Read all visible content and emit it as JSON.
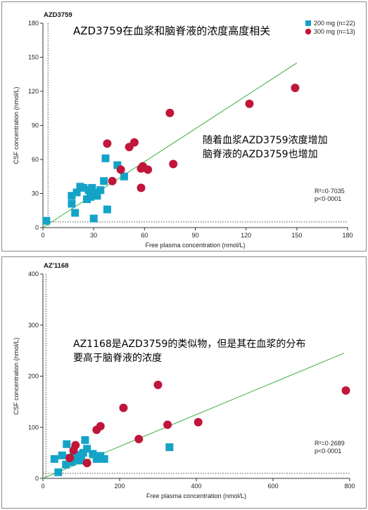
{
  "annotations": {
    "top_title": "AZD3759在血浆和脑脊液的浓度高度相关",
    "top_note_line1": "随着血浆AZD3759浓度增加",
    "top_note_line2": "脑脊液的AZD3759也增加",
    "bottom_note_line1": "AZ1168是AZD3759的类似物，但是其在血浆的分布",
    "bottom_note_line2": "要高于脑脊液的浓度"
  },
  "colors": {
    "series_200": "#14a3c7",
    "series_300": "#c0163a",
    "fit_line": "#3cb043",
    "axis": "#333333"
  },
  "chart_data": [
    {
      "type": "scatter",
      "title": "AZD3759",
      "xlabel": "Free plasma concentration (nmol/L)",
      "ylabel": "CSF concentration (nmol/L)",
      "xlim": [
        0,
        180
      ],
      "ylim": [
        0,
        180
      ],
      "xticks": [
        0,
        30,
        60,
        90,
        120,
        150,
        180
      ],
      "yticks": [
        0,
        30,
        60,
        90,
        120,
        150,
        180
      ],
      "dotted_x": 3,
      "dotted_y": 5,
      "legend_position": "top-right",
      "series": [
        {
          "name": "200 mg (n=22)",
          "marker": "square",
          "points": [
            [
              2,
              6
            ],
            [
              17,
              21
            ],
            [
              17,
              28
            ],
            [
              19,
              13
            ],
            [
              20,
              31
            ],
            [
              22,
              36
            ],
            [
              24,
              35
            ],
            [
              26,
              25
            ],
            [
              27,
              33
            ],
            [
              28,
              27
            ],
            [
              29,
              35
            ],
            [
              30,
              8
            ],
            [
              30,
              31
            ],
            [
              32,
              28
            ],
            [
              34,
              33
            ],
            [
              36,
              41
            ],
            [
              37,
              61
            ],
            [
              38,
              16
            ],
            [
              44,
              55
            ],
            [
              48,
              45
            ]
          ]
        },
        {
          "name": "300 mg (n=13)",
          "marker": "circle",
          "points": [
            [
              38,
              74
            ],
            [
              41,
              41
            ],
            [
              46,
              51
            ],
            [
              51,
              71
            ],
            [
              54,
              75
            ],
            [
              58,
              52
            ],
            [
              58,
              35
            ],
            [
              59,
              54
            ],
            [
              62,
              51
            ],
            [
              75,
              101
            ],
            [
              77,
              56
            ],
            [
              122,
              109
            ],
            [
              149,
              123
            ]
          ]
        }
      ],
      "fit_line": [
        [
          0,
          0
        ],
        [
          150,
          145
        ]
      ],
      "stats": {
        "r2": "R²=0·7035",
        "p": "p<0·0001"
      }
    },
    {
      "type": "scatter",
      "title": "AZ'1168",
      "xlabel": "Free plasma concentration (nmol/L)",
      "ylabel": "CSF concentration (nmol/L)",
      "xlim": [
        0,
        800
      ],
      "ylim": [
        0,
        400
      ],
      "xticks": [
        0,
        200,
        400,
        600,
        800
      ],
      "yticks": [
        0,
        100,
        200,
        300,
        400
      ],
      "dotted_x": 8,
      "dotted_y": 10,
      "series": [
        {
          "name": "200 mg (n=22)",
          "marker": "square",
          "points": [
            [
              30,
              38
            ],
            [
              40,
              12
            ],
            [
              50,
              45
            ],
            [
              60,
              27
            ],
            [
              62,
              67
            ],
            [
              70,
              40
            ],
            [
              75,
              32
            ],
            [
              80,
              48
            ],
            [
              85,
              36
            ],
            [
              90,
              46
            ],
            [
              95,
              42
            ],
            [
              100,
              35
            ],
            [
              105,
              50
            ],
            [
              110,
              75
            ],
            [
              115,
              58
            ],
            [
              130,
              48
            ],
            [
              140,
              38
            ],
            [
              150,
              44
            ],
            [
              160,
              38
            ],
            [
              330,
              61
            ]
          ]
        },
        {
          "name": "300 mg (n=13)",
          "marker": "circle",
          "points": [
            [
              70,
              40
            ],
            [
              80,
              55
            ],
            [
              85,
              65
            ],
            [
              115,
              30
            ],
            [
              140,
              95
            ],
            [
              150,
              102
            ],
            [
              210,
              138
            ],
            [
              250,
              77
            ],
            [
              300,
              183
            ],
            [
              325,
              105
            ],
            [
              405,
              110
            ],
            [
              790,
              172
            ]
          ]
        }
      ],
      "fit_line": [
        [
          0,
          0
        ],
        [
          785,
          245
        ]
      ],
      "stats": {
        "r2": "R²=0·2689",
        "p": "p<0·0001"
      }
    }
  ]
}
